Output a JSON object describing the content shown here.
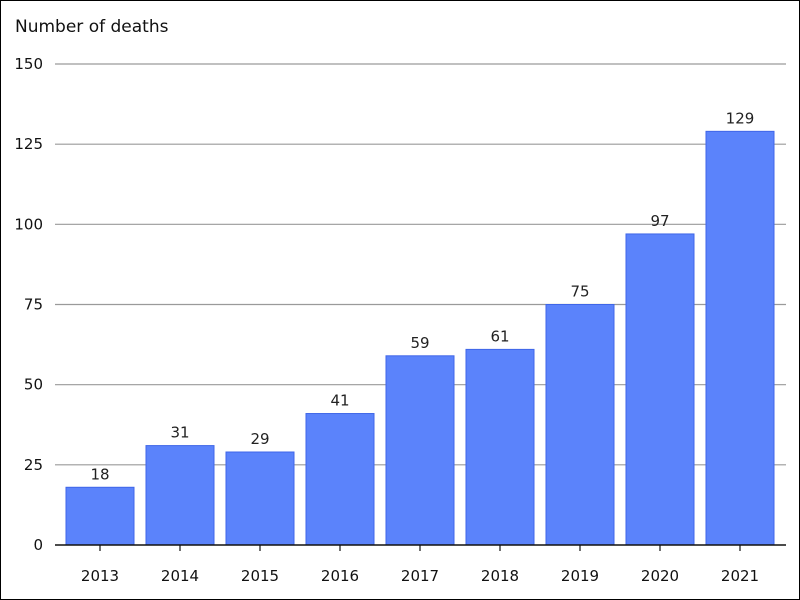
{
  "chart_data": {
    "type": "bar",
    "title": "",
    "xlabel": "",
    "ylabel": "Number of deaths",
    "categories": [
      "2013",
      "2014",
      "2015",
      "2016",
      "2017",
      "2018",
      "2019",
      "2020",
      "2021"
    ],
    "values": [
      18,
      31,
      29,
      41,
      59,
      61,
      75,
      97,
      129
    ],
    "ylim": [
      0,
      150
    ],
    "yticks": [
      0,
      25,
      50,
      75,
      100,
      125,
      150
    ],
    "grid": true,
    "legend": "none",
    "bar_color": "#5b83fb",
    "bar_edge_color": "#3f66e8"
  }
}
